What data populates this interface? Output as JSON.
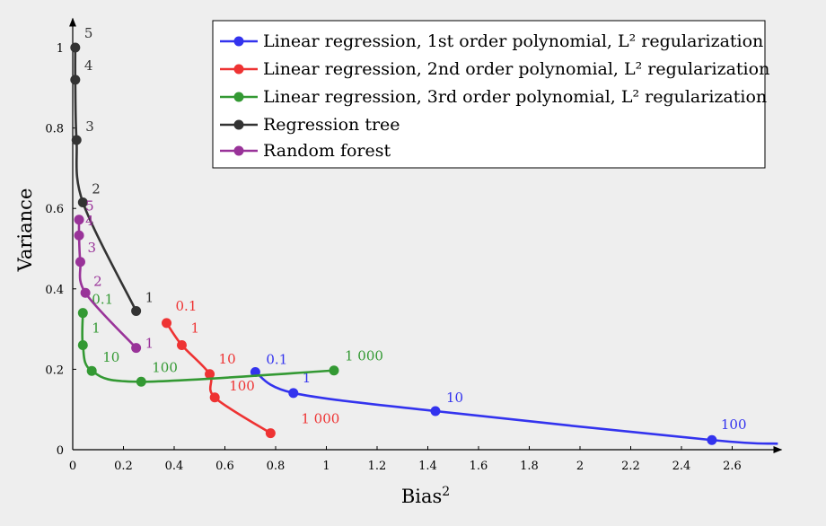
{
  "colors": {
    "background": "#eeeeee",
    "axis": "#000000",
    "blue": "#3333ee",
    "red": "#ee3333",
    "green": "#339933",
    "black": "#333333",
    "purple": "#993399"
  },
  "chart_data": {
    "type": "line",
    "title": "",
    "xlabel": "Bias²",
    "ylabel": "Variance",
    "xlim": [
      0,
      2.78
    ],
    "ylim": [
      0,
      1.07
    ],
    "xticks": [
      "0",
      "0.2",
      "0.4",
      "0.6",
      "0.8",
      "1",
      "1.2",
      "1.4",
      "1.6",
      "1.8",
      "2",
      "2.2",
      "2.4",
      "2.6"
    ],
    "yticks": [
      "0",
      "0.2",
      "0.4",
      "0.6",
      "0.8",
      "1"
    ],
    "grid": false,
    "legend_position": "top-right",
    "legend_entries": [
      "Linear regression, 1st order polynomial, L² regularization",
      "Linear regression, 2nd order polynomial, L² regularization",
      "Linear regression, 3rd order polynomial, L² regularization",
      "Regression tree",
      "Random forest"
    ],
    "series": [
      {
        "name": "Linear regression, 1st order polynomial, L² regularization",
        "color": "blue",
        "points": [
          {
            "x": 0.72,
            "y": 0.193,
            "label": "0.1"
          },
          {
            "x": 0.87,
            "y": 0.141,
            "label": "1"
          },
          {
            "x": 1.43,
            "y": 0.096,
            "label": "10"
          },
          {
            "x": 2.52,
            "y": 0.024,
            "label": "100"
          }
        ],
        "tail": {
          "x": 2.78,
          "y": 0.015
        }
      },
      {
        "name": "Linear regression, 2nd order polynomial, L² regularization",
        "color": "red",
        "points": [
          {
            "x": 0.37,
            "y": 0.315,
            "label": "0.1"
          },
          {
            "x": 0.43,
            "y": 0.26,
            "label": "1"
          },
          {
            "x": 0.54,
            "y": 0.188,
            "label": "10"
          },
          {
            "x": 0.56,
            "y": 0.13,
            "label": "100"
          },
          {
            "x": 0.78,
            "y": 0.041,
            "label": "1 000"
          }
        ]
      },
      {
        "name": "Linear regression, 3rd order polynomial, L² regularization",
        "color": "green",
        "points": [
          {
            "x": 0.04,
            "y": 0.34,
            "label": "0.1"
          },
          {
            "x": 0.04,
            "y": 0.26,
            "label": "1"
          },
          {
            "x": 0.075,
            "y": 0.196,
            "label": "10"
          },
          {
            "x": 0.27,
            "y": 0.169,
            "label": "100"
          },
          {
            "x": 1.03,
            "y": 0.197,
            "label": "1 000"
          }
        ]
      },
      {
        "name": "Regression tree",
        "color": "black",
        "points": [
          {
            "x": 0.01,
            "y": 1.0,
            "label": "5"
          },
          {
            "x": 0.01,
            "y": 0.92,
            "label": "4"
          },
          {
            "x": 0.015,
            "y": 0.77,
            "label": "3"
          },
          {
            "x": 0.04,
            "y": 0.615,
            "label": "2"
          },
          {
            "x": 0.25,
            "y": 0.345,
            "label": "1"
          }
        ]
      },
      {
        "name": "Random forest",
        "color": "purple",
        "points": [
          {
            "x": 0.025,
            "y": 0.572,
            "label": "5"
          },
          {
            "x": 0.025,
            "y": 0.533,
            "label": "4"
          },
          {
            "x": 0.03,
            "y": 0.467,
            "label": "3"
          },
          {
            "x": 0.05,
            "y": 0.39,
            "label": "2"
          },
          {
            "x": 0.25,
            "y": 0.253,
            "label": "1"
          }
        ]
      }
    ]
  }
}
